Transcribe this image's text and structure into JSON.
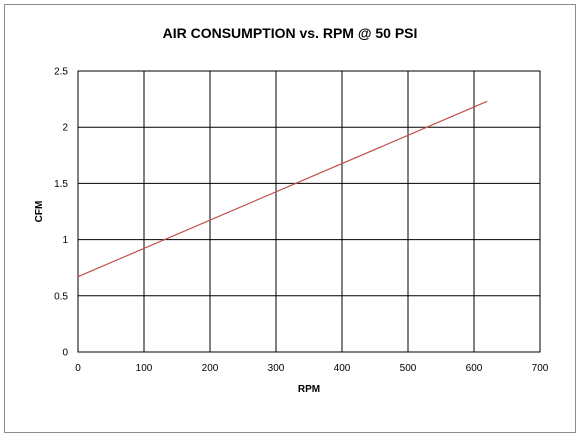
{
  "chart_data": {
    "type": "line",
    "title": "AIR CONSUMPTION vs. RPM @ 50 PSI",
    "xlabel": "RPM",
    "ylabel": "CFM",
    "xlim": [
      0,
      700
    ],
    "ylim": [
      0,
      2.5
    ],
    "x_ticks": [
      0,
      100,
      200,
      300,
      400,
      500,
      600,
      700
    ],
    "y_ticks": [
      0,
      0.5,
      1,
      1.5,
      2,
      2.5
    ],
    "x_tick_labels": [
      "0",
      "100",
      "200",
      "300",
      "400",
      "500",
      "600",
      "700"
    ],
    "y_tick_labels": [
      "0",
      "0.5",
      "1",
      "1.5",
      "2",
      "2.5"
    ],
    "grid": true,
    "legend": "none",
    "series": [
      {
        "color": "#c0504d",
        "x": [
          0,
          620
        ],
        "y": [
          0.67,
          2.23
        ]
      }
    ]
  }
}
